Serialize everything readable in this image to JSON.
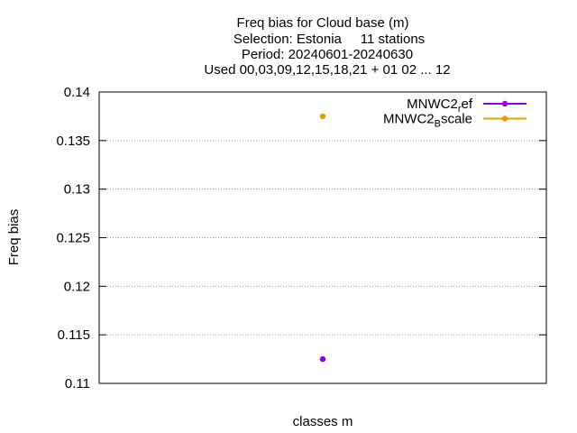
{
  "chart_data": {
    "type": "scatter",
    "title_lines": [
      "Freq bias  for Cloud base (m)",
      "Selection: Estonia     11 stations",
      "Period: 20240601-20240630",
      "Used 00,03,09,12,15,18,21 + 01 02 ... 12"
    ],
    "xlabel": "classes m",
    "ylabel": "Freq bias",
    "ylim": [
      0.11,
      0.14
    ],
    "yticks": [
      "0.11",
      "0.115",
      "0.12",
      "0.125",
      "0.13",
      "0.135",
      "0.14"
    ],
    "grid": true,
    "legend_position": "top-right",
    "series": [
      {
        "name_main": "MNWC2",
        "name_sub": "r",
        "name_rest": "ef",
        "color": "#9400d3",
        "values": [
          0.1125
        ]
      },
      {
        "name_main": "MNWC2",
        "name_sub": "B",
        "name_rest": "scale",
        "color": "#e69f00",
        "values": [
          0.1375
        ]
      }
    ]
  }
}
